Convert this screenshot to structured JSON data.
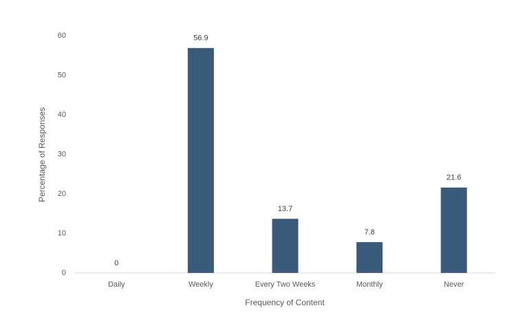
{
  "chart_data": {
    "type": "bar",
    "x_label": "Frequency of Content",
    "y_label": "Percentage of Responses",
    "categories": [
      "Daily",
      "Weekly",
      "Every Two Weeks",
      "Monthly",
      "Never"
    ],
    "values": [
      0,
      56.9,
      13.7,
      7.8,
      21.6
    ],
    "color": "#3b5b7a",
    "ylim": [
      0,
      60
    ],
    "yticks": [
      0,
      10,
      20,
      30,
      40,
      50,
      60
    ],
    "grid": false
  }
}
